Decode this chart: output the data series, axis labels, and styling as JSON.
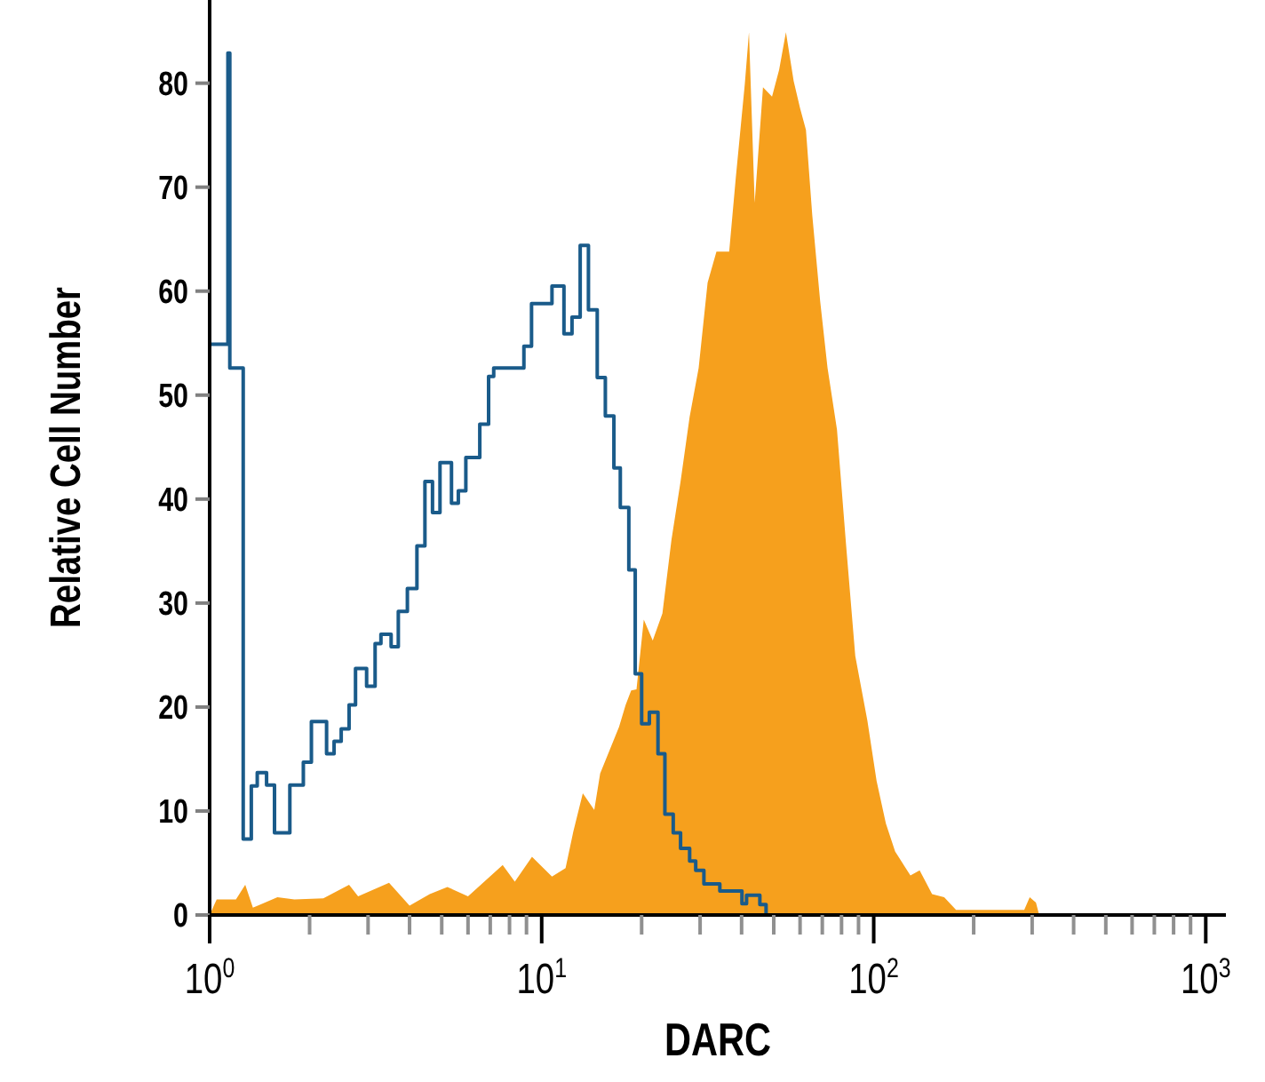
{
  "chart_data": {
    "type": "area",
    "xlabel": "DARC",
    "ylabel": "Relative Cell Number",
    "log": "x",
    "xlim": [
      1,
      1150
    ],
    "ylim": [
      0,
      88
    ],
    "xticks": [
      {
        "value": 1,
        "label": "10$^{0}$"
      },
      {
        "value": 2,
        "label": null
      },
      {
        "value": 3,
        "label": null
      },
      {
        "value": 4,
        "label": null
      },
      {
        "value": 5,
        "label": null
      },
      {
        "value": 6,
        "label": null
      },
      {
        "value": 7,
        "label": null
      },
      {
        "value": 8,
        "label": null
      },
      {
        "value": 9,
        "label": null
      },
      {
        "value": 10,
        "label": "10$^{1}$"
      },
      {
        "value": 20,
        "label": null
      },
      {
        "value": 30,
        "label": null
      },
      {
        "value": 40,
        "label": null
      },
      {
        "value": 50,
        "label": null
      },
      {
        "value": 60,
        "label": null
      },
      {
        "value": 70,
        "label": null
      },
      {
        "value": 80,
        "label": null
      },
      {
        "value": 90,
        "label": null
      },
      {
        "value": 100,
        "label": "10$^{2}$"
      },
      {
        "value": 200,
        "label": null
      },
      {
        "value": 300,
        "label": null
      },
      {
        "value": 400,
        "label": null
      },
      {
        "value": 500,
        "label": null
      },
      {
        "value": 600,
        "label": null
      },
      {
        "value": 700,
        "label": null
      },
      {
        "value": 800,
        "label": null
      },
      {
        "value": 900,
        "label": null
      },
      {
        "value": 1000,
        "label": "10$^{3}$"
      }
    ],
    "yticks": [
      0,
      10,
      20,
      30,
      40,
      50,
      60,
      70,
      80
    ],
    "series": [
      {
        "color": "#f6a01d",
        "x": [
          1,
          1.05,
          1.2,
          1.28,
          1.35,
          1.6,
          1.8,
          2.2,
          2.63,
          2.8,
          3.47,
          4.0,
          4.6,
          5.2,
          6.0,
          7.63,
          8.3,
          9.35,
          10.74,
          11.8,
          12.45,
          13.3,
          14.4,
          15.0,
          17.1,
          17.9,
          18.6,
          19.3,
          20.3,
          21.6,
          23.1,
          24.6,
          26.2,
          27.9,
          29.7,
          31.6,
          33.6,
          36.7,
          38.4,
          40.9,
          42.1,
          43.8,
          46.4,
          49.4,
          51.9,
          54.4,
          57.4,
          60,
          62.5,
          65.3,
          69,
          72.6,
          77.5,
          82.6,
          88,
          95.7,
          102,
          108.8,
          116,
          129,
          137.5,
          149.9,
          163,
          177,
          284,
          295,
          308,
          315
        ],
        "values": [
          0,
          1.5,
          1.5,
          2.9,
          0.7,
          1.7,
          1.5,
          1.6,
          2.9,
          1.8,
          3.1,
          0.9,
          2,
          2.7,
          1.8,
          4.8,
          3.2,
          5.6,
          3.7,
          4.5,
          8,
          11.7,
          10.1,
          13.6,
          18.1,
          20.2,
          21.6,
          21.7,
          28.4,
          26.4,
          29,
          36.1,
          41.7,
          47.9,
          52.6,
          60.8,
          63.8,
          63.8,
          70.8,
          79.9,
          84.9,
          68.5,
          79.6,
          78.7,
          81.3,
          84.9,
          80.2,
          77.6,
          75.5,
          67.3,
          59,
          52.6,
          46.7,
          35.5,
          24.9,
          18.7,
          12.9,
          8.8,
          6.1,
          3.8,
          4.3,
          2,
          1.7,
          0.5,
          0.5,
          1.7,
          1.2,
          0
        ]
      },
      {
        "type": "step",
        "color": "#1a5b8a",
        "x": [
          1,
          1,
          1.135,
          1.15,
          1.262,
          1.335,
          1.391,
          1.484,
          1.568,
          1.744,
          1.915,
          2.025,
          2.25,
          2.37,
          2.49,
          2.63,
          2.75,
          2.97,
          3.15,
          3.28,
          3.52,
          3.7,
          3.94,
          4.21,
          4.45,
          4.69,
          4.94,
          5.35,
          5.61,
          5.91,
          6.51,
          6.92,
          7.17,
          8.84,
          9.32,
          10.74,
          11.67,
          12.34,
          13.06,
          13.83,
          14.7,
          15.55,
          16.5,
          17.25,
          18.3,
          19.13,
          20,
          21.1,
          22.4,
          23.5,
          24.9,
          26.2,
          27.9,
          29.1,
          30.8,
          34.4,
          40.1,
          41.4,
          45.4,
          47.4
        ],
        "values": [
          0,
          54.9,
          82.9,
          52.6,
          7.3,
          12.4,
          13.7,
          12.5,
          7.9,
          12.5,
          14.7,
          18.6,
          15.5,
          16.7,
          17.9,
          20.2,
          23.7,
          22,
          26.1,
          27,
          25.8,
          29.2,
          31.4,
          35.5,
          41.7,
          38.7,
          43.5,
          39.6,
          40.8,
          44,
          47.2,
          51.8,
          52.6,
          54.7,
          58.8,
          60.5,
          55.9,
          57.5,
          64.4,
          58.2,
          51.7,
          48,
          43,
          39.2,
          33.2,
          23.2,
          18.4,
          19.5,
          15.5,
          9.7,
          7.9,
          6.4,
          5.2,
          4.3,
          3,
          2.3,
          1.1,
          1.9,
          1,
          0
        ]
      }
    ]
  }
}
